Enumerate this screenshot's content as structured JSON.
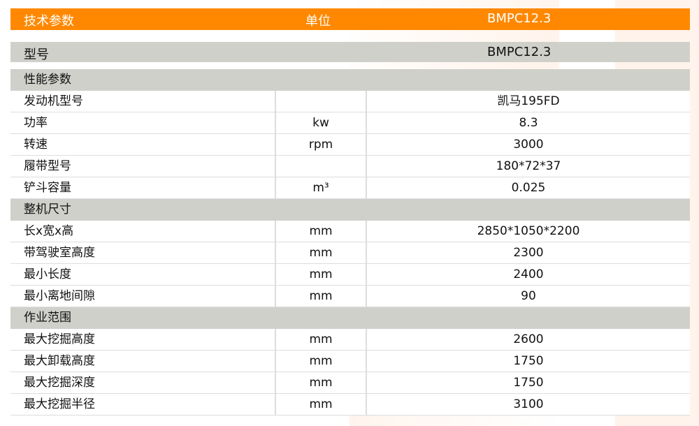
{
  "header": {
    "param": "技术参数",
    "unit": "单位",
    "model": "BMPC12.3"
  },
  "model_row": {
    "label": "型号",
    "value": "BMPC12.3"
  },
  "sections": [
    {
      "title": "性能参数",
      "rows": [
        {
          "name": "发动机型号",
          "unit": "",
          "value": "凯马195FD"
        },
        {
          "name": "功率",
          "unit": "kw",
          "value": "8.3"
        },
        {
          "name": "转速",
          "unit": "rpm",
          "value": "3000"
        },
        {
          "name": "履带型号",
          "unit": "",
          "value": "180*72*37"
        },
        {
          "name": "铲斗容量",
          "unit": "m³",
          "value": "0.025"
        }
      ]
    },
    {
      "title": "整机尺寸",
      "rows": [
        {
          "name": "长x宽x高",
          "unit": "mm",
          "value": "2850*1050*2200"
        },
        {
          "name": "带驾驶室高度",
          "unit": "mm",
          "value": "2300"
        },
        {
          "name": "最小长度",
          "unit": "mm",
          "value": "2400"
        },
        {
          "name": "最小离地间隙",
          "unit": "mm",
          "value": "90"
        }
      ]
    },
    {
      "title": "作业范围",
      "rows": [
        {
          "name": "最大挖掘高度",
          "unit": "mm",
          "value": "2600"
        },
        {
          "name": "最大卸载高度",
          "unit": "mm",
          "value": "1750"
        },
        {
          "name": "最大挖掘深度",
          "unit": "mm",
          "value": "1750"
        },
        {
          "name": "最大挖掘半径",
          "unit": "mm",
          "value": "3100"
        }
      ]
    }
  ],
  "colors": {
    "header": "#ff8800",
    "section": "#d0d0cb"
  }
}
